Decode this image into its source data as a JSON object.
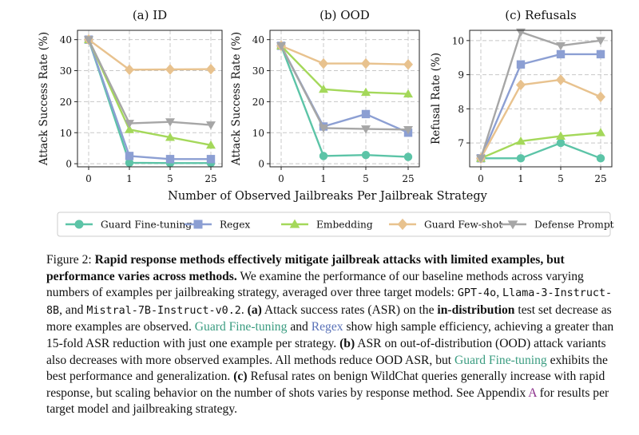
{
  "colors": {
    "Guard Fine-tuning": "#5cc4a7",
    "Regex": "#8c9fd3",
    "Embedding": "#a4d85a",
    "Guard Few-shot": "#e8c28e",
    "Defense Prompt": "#a6a6a6",
    "caption_gft": "#3a9c80",
    "caption_regex": "#5a72b8",
    "caption_link": "#8a2d8a"
  },
  "shared_xlabel": "Number of Observed Jailbreaks Per Jailbreak Strategy",
  "legend": [
    "Guard Fine-tuning",
    "Regex",
    "Embedding",
    "Guard Few-shot",
    "Defense Prompt"
  ],
  "chart_data": [
    {
      "type": "line",
      "title": "(a) ID",
      "ylabel": "Attack Success Rate (%)",
      "x": [
        0,
        1,
        5,
        25
      ],
      "x_ticks": [
        "0",
        "1",
        "5",
        "25"
      ],
      "ylim": [
        -1,
        43
      ],
      "y_ticks": [
        0,
        10,
        20,
        30,
        40
      ],
      "grid": true,
      "series": [
        {
          "name": "Guard Fine-tuning",
          "values": [
            40,
            0.3,
            0.2,
            0.2
          ]
        },
        {
          "name": "Regex",
          "values": [
            40,
            2.5,
            1.5,
            1.5
          ]
        },
        {
          "name": "Embedding",
          "values": [
            40,
            11,
            8.5,
            6
          ]
        },
        {
          "name": "Guard Few-shot",
          "values": [
            40,
            30.3,
            30.4,
            30.5
          ]
        },
        {
          "name": "Defense Prompt",
          "values": [
            40,
            13,
            13.5,
            12.5
          ]
        }
      ]
    },
    {
      "type": "line",
      "title": "(b) OOD",
      "ylabel": "Attack Success Rate (%)",
      "x": [
        0,
        1,
        5,
        25
      ],
      "x_ticks": [
        "0",
        "1",
        "5",
        "25"
      ],
      "ylim": [
        -1,
        43
      ],
      "y_ticks": [
        0,
        10,
        20,
        30,
        40
      ],
      "grid": true,
      "series": [
        {
          "name": "Guard Fine-tuning",
          "values": [
            38,
            2.5,
            2.8,
            2.2
          ]
        },
        {
          "name": "Regex",
          "values": [
            38,
            12,
            16,
            10
          ]
        },
        {
          "name": "Embedding",
          "values": [
            38,
            24,
            23,
            22.5
          ]
        },
        {
          "name": "Guard Few-shot",
          "values": [
            38,
            32.3,
            32.3,
            32
          ]
        },
        {
          "name": "Defense Prompt",
          "values": [
            38,
            11.5,
            11.2,
            11
          ]
        }
      ]
    },
    {
      "type": "line",
      "title": "(c) Refusals",
      "ylabel": "Refusal Rate (%)",
      "x": [
        0,
        1,
        5,
        25
      ],
      "x_ticks": [
        "0",
        "1",
        "5",
        "25"
      ],
      "ylim": [
        6.3,
        10.3
      ],
      "y_ticks": [
        7,
        8,
        9,
        10
      ],
      "grid": true,
      "series": [
        {
          "name": "Guard Fine-tuning",
          "values": [
            6.55,
            6.55,
            7.0,
            6.55
          ]
        },
        {
          "name": "Regex",
          "values": [
            6.55,
            9.3,
            9.6,
            9.6
          ]
        },
        {
          "name": "Embedding",
          "values": [
            6.55,
            7.05,
            7.2,
            7.3
          ]
        },
        {
          "name": "Guard Few-shot",
          "values": [
            6.55,
            8.7,
            8.85,
            8.35
          ]
        },
        {
          "name": "Defense Prompt",
          "values": [
            6.55,
            10.25,
            9.85,
            10.0
          ]
        }
      ]
    }
  ],
  "caption": {
    "fig_label": "Figure 2:",
    "bold_title": "Rapid response methods effectively mitigate jailbreak attacks with limited examples, but performance varies across methods.",
    "s1": "We examine the performance of our baseline methods across varying numbers of examples per jailbreaking strategy, averaged over three target models:",
    "m1": "GPT-4o",
    "sep1": ",",
    "m2": "Llama-3-Instruct-8B",
    "sep2": ", and",
    "m3": "Mistral-7B-Instruct-v0.2",
    "s2": ".",
    "a_label": "(a)",
    "a1": "Attack success rates (ASR) on the",
    "a_bold": "in-distribution",
    "a2": "test set decrease as more examples are observed.",
    "gft1": "Guard Fine-tuning",
    "and1": "and",
    "rgx1": "Regex",
    "a3": "show high sample efficiency, achieving a greater than 15-fold ASR reduction with just one example per strategy.",
    "b_label": "(b)",
    "b1": "ASR on out-of-distribution (OOD) attack variants also decreases with more observed examples. All methods reduce OOD ASR, but",
    "gft2": "Guard Fine-tuning",
    "b2": "exhibits the best performance and generalization.",
    "c_label": "(c)",
    "c1": "Refusal rates on benign WildChat queries generally increase with rapid response, but scaling behavior on the number of shots varies by response method. See Appendix",
    "c_link": "A",
    "c2": "for results per target model and jailbreaking strategy."
  }
}
